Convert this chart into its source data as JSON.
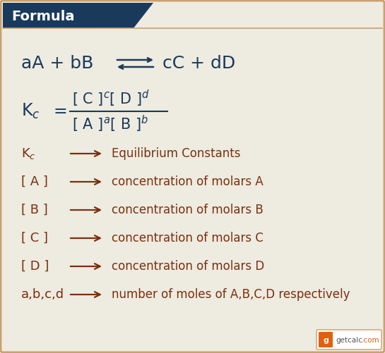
{
  "bg_color": "#eeebe0",
  "header_bg": "#1a3a5c",
  "header_text_color": "#ffffff",
  "border_color": "#c8a070",
  "dark_blue": "#1a3a5c",
  "brown": "#7a3010",
  "fig_width": 5.45,
  "fig_height": 5.01,
  "dpi": 100,
  "header_text": "Formula",
  "legend_items": [
    {
      "symbol": "K$_c$",
      "description": "Equilibrium Constants"
    },
    {
      "symbol": "[ A ]",
      "description": "concentration of molars A"
    },
    {
      "symbol": "[ B ]",
      "description": "concentration of molars B"
    },
    {
      "symbol": "[ C ]",
      "description": "concentration of molars C"
    },
    {
      "symbol": "[ D ]",
      "description": "concentration of molars D"
    },
    {
      "symbol": "a,b,c,d",
      "description": "number of moles of A,B,C,D respectively"
    }
  ]
}
